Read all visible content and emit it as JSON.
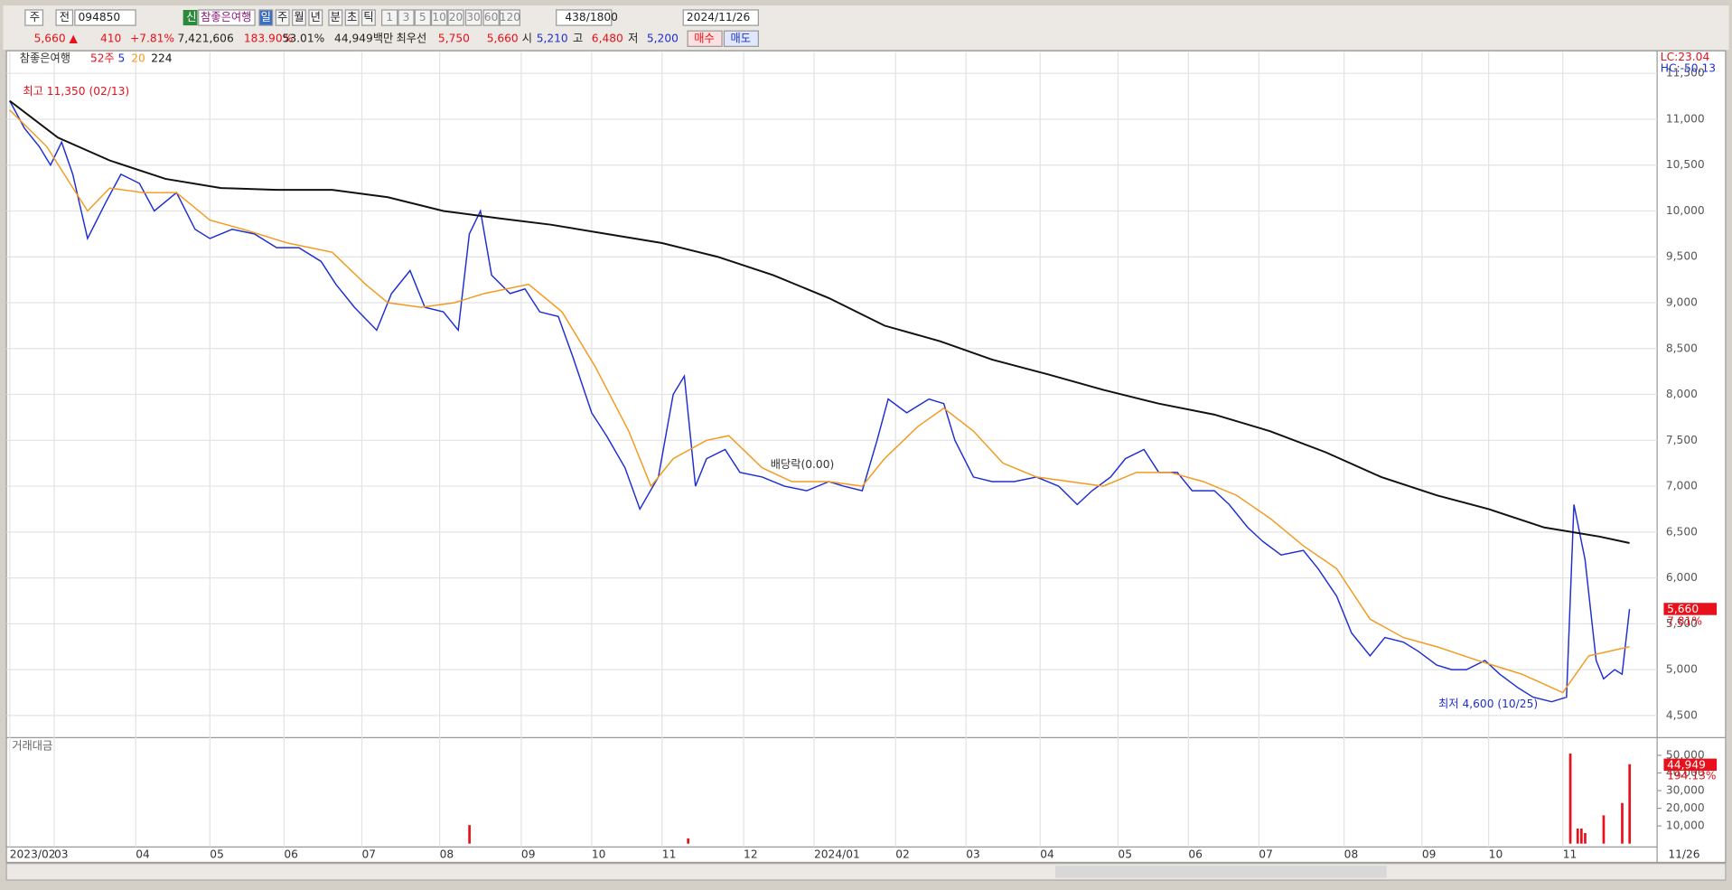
{
  "toolbar": {
    "stock_prefix": "주",
    "scope": "전",
    "code": "094850",
    "badge": "신",
    "name": "참좋은여행",
    "periods": [
      "일",
      "주",
      "월",
      "년",
      "분",
      "초",
      "틱"
    ],
    "intervals": [
      "1",
      "3",
      "5",
      "10",
      "20",
      "30",
      "60",
      "120"
    ],
    "count": "438",
    "max": "/1800",
    "date": "2024/11/26"
  },
  "quote": {
    "price": "5,660 ▲",
    "change": "410",
    "change_pct": "+7.81%",
    "volume": "7,421,606",
    "volume_ratio": "183.90%",
    "turnover": "53.01%",
    "amount": "44,949백만",
    "best_label": "최우선",
    "ask": "5,750",
    "bid": "5,660",
    "open_label": "시",
    "open": "5,210",
    "high_label": "고",
    "high": "6,480",
    "low_label": "저",
    "low": "5,200",
    "buy": "매수",
    "sell": "매도"
  },
  "chart_data": [
    {
      "type": "line",
      "title": "참좋은여행",
      "period_label": "52주",
      "xlim": [
        0,
        437
      ],
      "xticks": [
        {
          "value": 0,
          "label": "2023/02"
        },
        {
          "value": 12,
          "label": "03"
        },
        {
          "value": 34,
          "label": "04"
        },
        {
          "value": 54,
          "label": "05"
        },
        {
          "value": 74,
          "label": "06"
        },
        {
          "value": 95,
          "label": "07"
        },
        {
          "value": 116,
          "label": "08"
        },
        {
          "value": 138,
          "label": "09"
        },
        {
          "value": 157,
          "label": "10"
        },
        {
          "value": 176,
          "label": "11"
        },
        {
          "value": 198,
          "label": "12"
        },
        {
          "value": 217,
          "label": "2024/01"
        },
        {
          "value": 239,
          "label": "02"
        },
        {
          "value": 258,
          "label": "03"
        },
        {
          "value": 278,
          "label": "04"
        },
        {
          "value": 299,
          "label": "05"
        },
        {
          "value": 318,
          "label": "06"
        },
        {
          "value": 337,
          "label": "07"
        },
        {
          "value": 360,
          "label": "08"
        },
        {
          "value": 381,
          "label": "09"
        },
        {
          "value": 399,
          "label": "10"
        },
        {
          "value": 419,
          "label": "11"
        }
      ],
      "last_date": "11/26",
      "ylim": [
        4271,
        11734
      ],
      "yticks": [
        {
          "value": 4500,
          "label": "4,500"
        },
        {
          "value": 5000,
          "label": "5,000"
        },
        {
          "value": 5500,
          "label": "5,500"
        },
        {
          "value": 6000,
          "label": "6,000"
        },
        {
          "value": 6500,
          "label": "6,500"
        },
        {
          "value": 7000,
          "label": "7,000"
        },
        {
          "value": 7500,
          "label": "7,500"
        },
        {
          "value": 8000,
          "label": "8,000"
        },
        {
          "value": 8500,
          "label": "8,500"
        },
        {
          "value": 9000,
          "label": "9,000"
        },
        {
          "value": 9500,
          "label": "9,500"
        },
        {
          "value": 10000,
          "label": "10,000"
        },
        {
          "value": 10500,
          "label": "10,500"
        },
        {
          "value": 11000,
          "label": "11,000"
        },
        {
          "value": 11500,
          "label": "11,500"
        }
      ],
      "grid": true,
      "series": [
        {
          "name": "5",
          "color": "#1f2fd0",
          "x": [
            0,
            4,
            8,
            11,
            14,
            17,
            21,
            26,
            30,
            35,
            39,
            45,
            50,
            54,
            60,
            66,
            72,
            78,
            84,
            88,
            93,
            99,
            103,
            108,
            112,
            117,
            121,
            124,
            127,
            130,
            135,
            139,
            143,
            148,
            152,
            157,
            161,
            166,
            170,
            175,
            179,
            182,
            185,
            188,
            193,
            197,
            203,
            209,
            215,
            221,
            225,
            230,
            234,
            237,
            242,
            248,
            252,
            255,
            260,
            265,
            271,
            277,
            283,
            288,
            292,
            297,
            301,
            306,
            310,
            315,
            319,
            325,
            329,
            334,
            338,
            343,
            349,
            353,
            358,
            362,
            367,
            371,
            376,
            380,
            385,
            389,
            393,
            398,
            402,
            407,
            411,
            416,
            420,
            422,
            425,
            428,
            430,
            433,
            435,
            437
          ],
          "values": [
            11200,
            10900,
            10700,
            10500,
            10750,
            10400,
            9700,
            10100,
            10400,
            10300,
            10000,
            10200,
            9800,
            9700,
            9800,
            9750,
            9600,
            9600,
            9450,
            9200,
            8950,
            8700,
            9100,
            9350,
            8950,
            8900,
            8700,
            9750,
            10000,
            9300,
            9100,
            9150,
            8900,
            8850,
            8400,
            7800,
            7550,
            7200,
            6750,
            7100,
            8000,
            8200,
            7000,
            7300,
            7400,
            7150,
            7100,
            7000,
            6950,
            7050,
            7000,
            6950,
            7500,
            7950,
            7800,
            7950,
            7900,
            7500,
            7100,
            7050,
            7050,
            7100,
            7000,
            6800,
            6950,
            7100,
            7300,
            7400,
            7150,
            7150,
            6950,
            6950,
            6800,
            6550,
            6400,
            6250,
            6300,
            6100,
            5800,
            5400,
            5150,
            5350,
            5300,
            5200,
            5050,
            5000,
            5000,
            5100,
            4950,
            4800,
            4700,
            4650,
            4700,
            6800,
            6200,
            5100,
            4900,
            5000,
            4950,
            5660
          ]
        },
        {
          "name": "20",
          "color": "#f39a1e",
          "x": [
            0,
            10,
            21,
            27,
            36,
            45,
            54,
            63,
            75,
            87,
            96,
            102,
            111,
            120,
            128,
            140,
            149,
            158,
            167,
            173,
            179,
            188,
            194,
            203,
            211,
            221,
            230,
            236,
            245,
            252,
            260,
            268,
            277,
            286,
            295,
            304,
            313,
            322,
            331,
            340,
            349,
            358,
            367,
            376,
            385,
            396,
            408,
            419,
            426,
            437
          ],
          "values": [
            11100,
            10700,
            10000,
            10250,
            10200,
            10200,
            9900,
            9800,
            9650,
            9550,
            9200,
            9000,
            8950,
            9000,
            9100,
            9200,
            8900,
            8300,
            7600,
            7000,
            7300,
            7500,
            7550,
            7200,
            7050,
            7050,
            7000,
            7300,
            7650,
            7850,
            7600,
            7250,
            7100,
            7050,
            7000,
            7150,
            7150,
            7050,
            6900,
            6650,
            6350,
            6100,
            5550,
            5350,
            5250,
            5100,
            4950,
            4750,
            5150,
            5250
          ]
        },
        {
          "name": "224",
          "color": "#111111",
          "x": [
            0,
            13,
            27,
            42,
            57,
            72,
            87,
            102,
            117,
            132,
            146,
            161,
            176,
            191,
            206,
            221,
            236,
            251,
            265,
            280,
            295,
            310,
            325,
            340,
            355,
            370,
            385,
            399,
            414,
            429,
            437
          ],
          "values": [
            11200,
            10800,
            10550,
            10350,
            10250,
            10230,
            10230,
            10150,
            10000,
            9920,
            9850,
            9750,
            9650,
            9500,
            9300,
            9050,
            8750,
            8580,
            8380,
            8220,
            8050,
            7900,
            7780,
            7600,
            7370,
            7100,
            6900,
            6750,
            6550,
            6450,
            6380
          ]
        }
      ],
      "annotations": {
        "high": "최고 11,350 (02/13)",
        "low": "최저 4,600 (10/25)",
        "dividend": "배당락(0.00)",
        "lc": "LC:23.04",
        "hc": "HC:-50.13",
        "last_price": "5,660",
        "last_pct": "7.81%"
      }
    },
    {
      "type": "bar",
      "title": "거래대금",
      "xlim": [
        0,
        437
      ],
      "ylim": [
        0,
        58750
      ],
      "yticks": [
        {
          "value": 10000,
          "label": "10,000"
        },
        {
          "value": 20000,
          "label": "20,000"
        },
        {
          "value": 30000,
          "label": "30,000"
        },
        {
          "value": 40000,
          "label": "40,000"
        },
        {
          "value": 50000,
          "label": "50,000"
        }
      ],
      "color": "#e8101a",
      "x": [
        124,
        183,
        421,
        423,
        424,
        425,
        430,
        435,
        437
      ],
      "values": [
        10500,
        3000,
        51000,
        8500,
        8500,
        6000,
        16000,
        23000,
        44949
      ],
      "last_value": "44,949",
      "last_pct": "194.13%"
    }
  ]
}
